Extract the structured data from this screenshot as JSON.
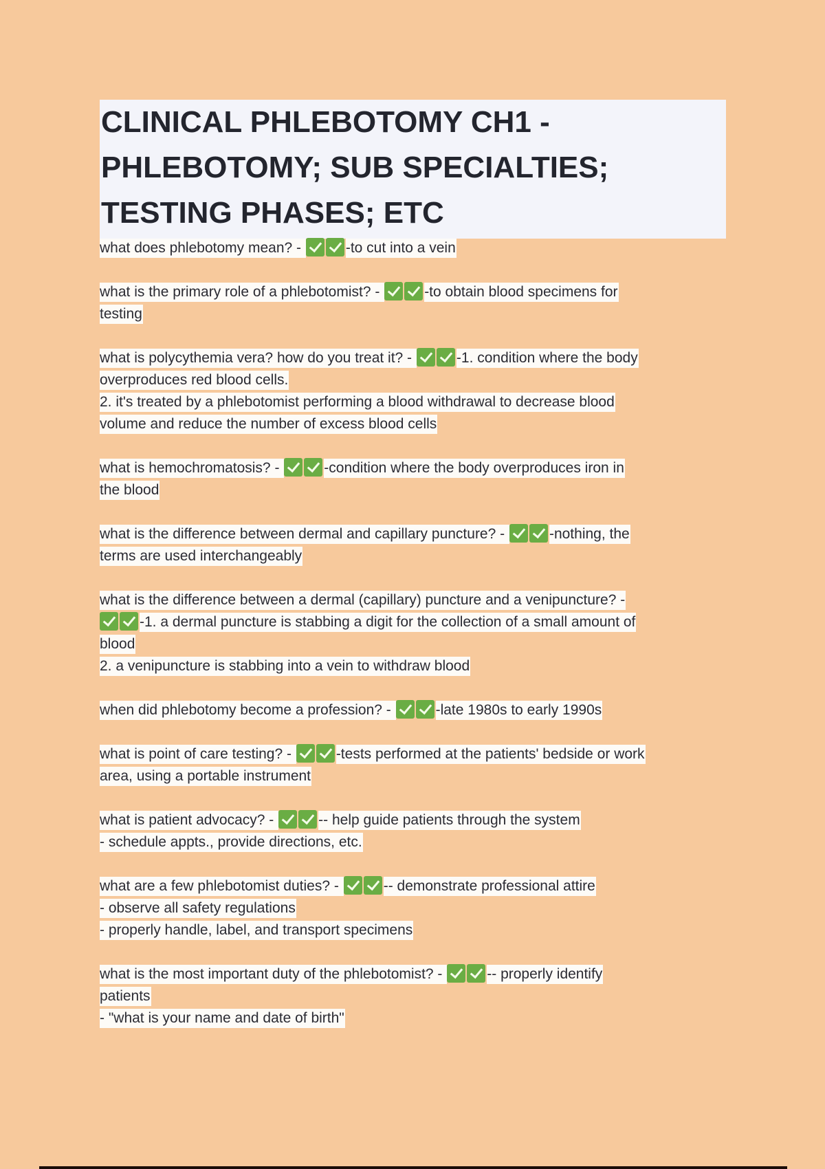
{
  "title": [
    "CLINICAL PHLEBOTOMY CH1 -",
    "PHLEBOTOMY; SUB SPECIALTIES;",
    "TESTING PHASES; ETC"
  ],
  "colors": {
    "background": "#f7c99c",
    "check": "#6aad44",
    "title_bg": "#f3f4fa"
  },
  "items": [
    {
      "lines": [
        [
          "what does phlebotomy mean? - ",
          "✅✅",
          "-to cut into a vein"
        ]
      ]
    },
    {
      "lines": [
        [
          "what is the primary role of a phlebotomist? - ",
          "✅✅",
          "-to obtain blood specimens for"
        ],
        [
          "testing"
        ]
      ]
    },
    {
      "lines": [
        [
          "what is polycythemia vera? how do you treat it? - ",
          "✅✅",
          "-1. condition where the body"
        ],
        [
          "overproduces red blood cells."
        ],
        [
          "2. it's treated by a phlebotomist performing a blood withdrawal to decrease blood"
        ],
        [
          "volume and reduce the number of excess blood cells"
        ]
      ]
    },
    {
      "lines": [
        [
          "what is hemochromatosis? - ",
          "✅✅",
          "-condition where the body overproduces iron in"
        ],
        [
          "the blood"
        ]
      ]
    },
    {
      "lines": [
        [
          "what is the difference between dermal and capillary puncture? - ",
          "✅✅",
          "-nothing, the"
        ],
        [
          "terms are used interchangeably"
        ]
      ]
    },
    {
      "lines": [
        [
          "what is the difference between a dermal (capillary) puncture and a venipuncture? -"
        ],
        [
          "✅✅",
          "-1. a dermal puncture is stabbing a digit for the collection of a small amount of"
        ],
        [
          "blood"
        ],
        [
          "2. a venipuncture is stabbing into a vein to withdraw blood"
        ]
      ]
    },
    {
      "lines": [
        [
          "when did phlebotomy become a profession? - ",
          "✅✅",
          "-late 1980s to early 1990s"
        ]
      ]
    },
    {
      "lines": [
        [
          "what is point of care testing? - ",
          "✅✅",
          "-tests performed at the patients' bedside or work"
        ],
        [
          "area, using a portable instrument"
        ]
      ]
    },
    {
      "lines": [
        [
          "what is patient advocacy? - ",
          "✅✅",
          "-- help guide patients through the system"
        ],
        [
          "- schedule appts., provide directions, etc."
        ]
      ]
    },
    {
      "lines": [
        [
          "what are a few phlebotomist duties? - ",
          "✅✅",
          "-- demonstrate professional attire"
        ],
        [
          "- observe all safety regulations"
        ],
        [
          "- properly handle, label, and transport specimens"
        ]
      ]
    },
    {
      "lines": [
        [
          "what is the most important duty of the phlebotomist? - ",
          "✅✅",
          "-- properly identify"
        ],
        [
          "patients"
        ],
        [
          "- \"what is your name and date of birth\""
        ]
      ]
    }
  ]
}
